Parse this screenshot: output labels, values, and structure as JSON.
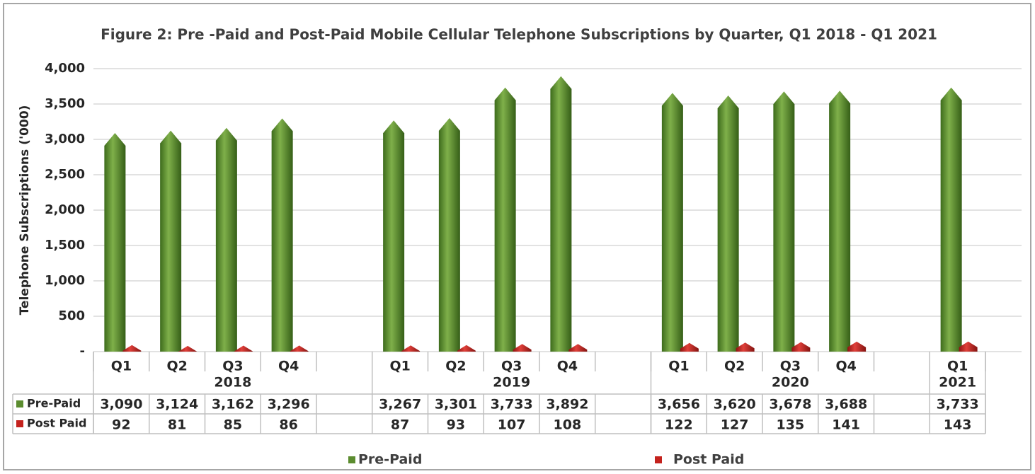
{
  "chart_data": {
    "type": "bar",
    "title": "Figure 2: Pre -Paid and Post-Paid Mobile Cellular Telephone Subscriptions by Quarter, Q1 2018 - Q1 2021",
    "y_label": "Telephone Subscriptions ('000)",
    "categories": [
      "Q1",
      "Q2",
      "Q3",
      "Q4",
      null,
      "Q1",
      "Q2",
      "Q3",
      "Q4",
      null,
      "Q1",
      "Q2",
      "Q3",
      "Q4",
      null,
      "Q1"
    ],
    "groups": [
      "2018",
      "2019",
      "2020",
      "2021"
    ],
    "series": [
      {
        "name": "Pre-Paid",
        "color": "#5b8c2f",
        "values": [
          3090,
          3124,
          3162,
          3296,
          null,
          3267,
          3301,
          3733,
          3892,
          null,
          3656,
          3620,
          3678,
          3688,
          null,
          3733
        ],
        "value_labels": [
          "3,090",
          "3,124",
          "3,162",
          "3,296",
          null,
          "3,267",
          "3,301",
          "3,733",
          "3,892",
          null,
          "3,656",
          "3,620",
          "3,678",
          "3,688",
          null,
          "3,733"
        ]
      },
      {
        "name": "Post Paid",
        "color": "#c4221d",
        "values": [
          92,
          81,
          85,
          86,
          null,
          87,
          93,
          107,
          108,
          null,
          122,
          127,
          135,
          141,
          null,
          143
        ]
      }
    ],
    "ylim": [
      0,
      4000
    ],
    "yticks": [
      {
        "value": 0,
        "label": "-"
      },
      500,
      {
        "value": 1000,
        "label": "1,000"
      },
      {
        "value": 1500,
        "label": "1,500"
      },
      {
        "value": 2000,
        "label": "2,000"
      },
      {
        "value": 2500,
        "label": "2,500"
      },
      {
        "value": 3000,
        "label": "3,000"
      },
      {
        "value": 3500,
        "label": "3,500"
      },
      {
        "value": 4000,
        "label": "4,000"
      }
    ],
    "grid": true,
    "legend": "bottom"
  }
}
